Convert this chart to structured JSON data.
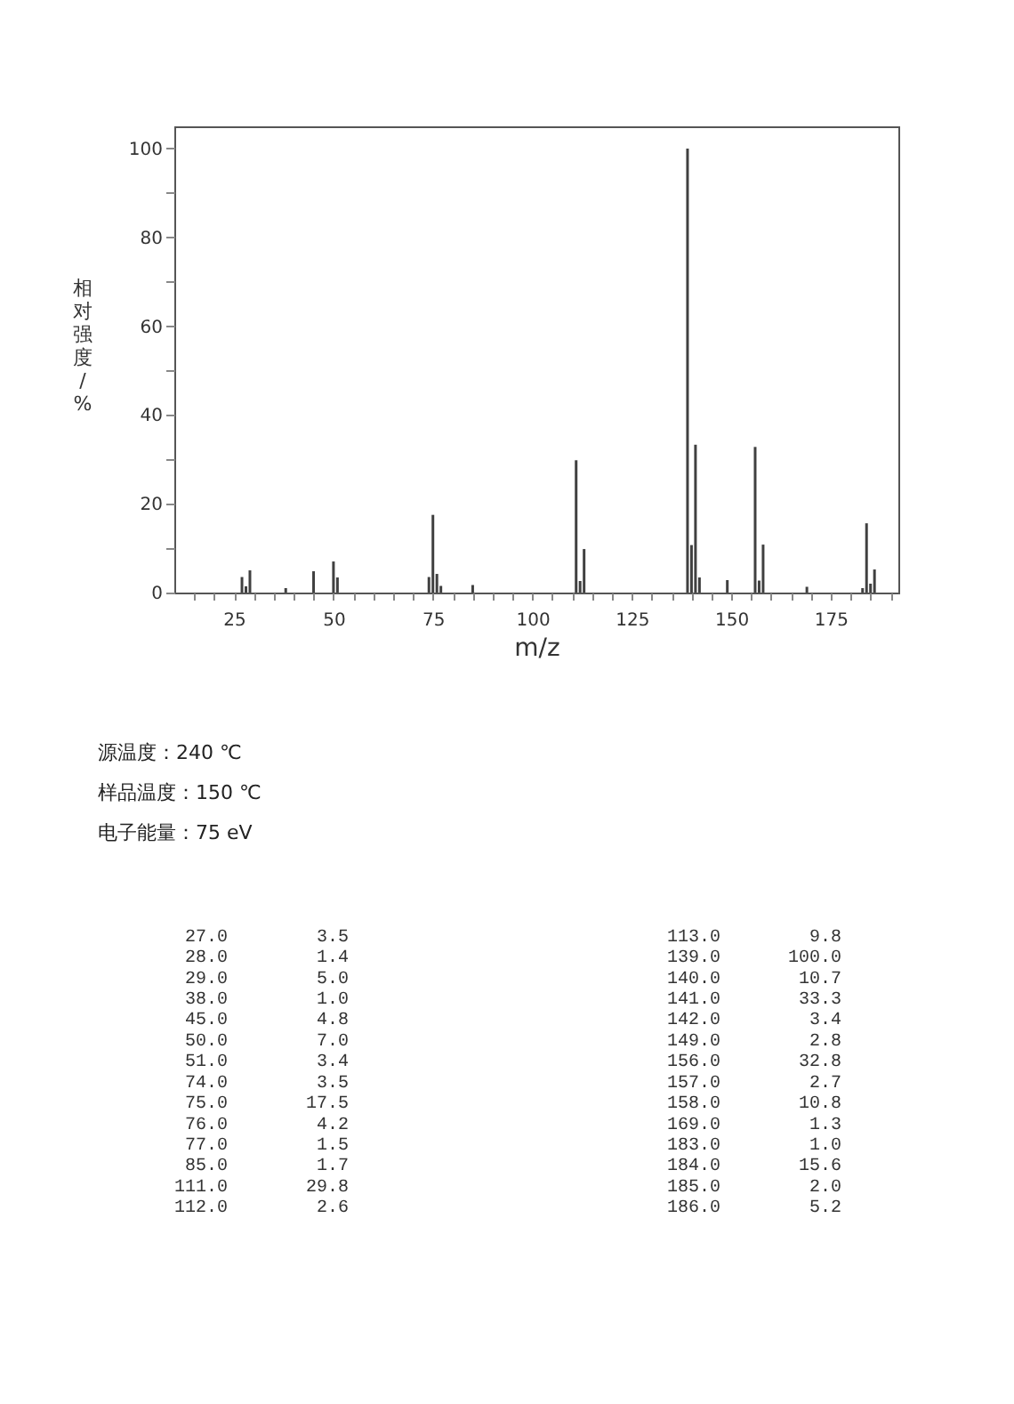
{
  "chart_data": [
    {
      "type": "bar",
      "xlabel": "m/z",
      "ylabel": "相对强度/%",
      "x": [
        27,
        28,
        29,
        38,
        45,
        50,
        51,
        74,
        75,
        76,
        77,
        85,
        111,
        112,
        113,
        139,
        140,
        141,
        142,
        149,
        156,
        157,
        158,
        169,
        183,
        184,
        185,
        186
      ],
      "values": [
        3.5,
        1.4,
        5.0,
        1.0,
        4.8,
        7.0,
        3.4,
        3.5,
        17.5,
        4.2,
        1.5,
        1.7,
        29.8,
        2.6,
        9.8,
        100.0,
        10.7,
        33.3,
        3.4,
        2.8,
        32.8,
        2.7,
        10.8,
        1.3,
        1.0,
        15.6,
        2.0,
        5.2
      ],
      "color": "#404040",
      "xlim": [
        10,
        192
      ],
      "ylim": [
        0,
        105
      ],
      "xticks": [
        {
          "value": 15,
          "label": null
        },
        {
          "value": 20,
          "label": null
        },
        25,
        {
          "value": 30,
          "label": null
        },
        {
          "value": 35,
          "label": null
        },
        {
          "value": 40,
          "label": null
        },
        {
          "value": 45,
          "label": null
        },
        50,
        {
          "value": 55,
          "label": null
        },
        {
          "value": 60,
          "label": null
        },
        {
          "value": 65,
          "label": null
        },
        {
          "value": 70,
          "label": null
        },
        75,
        {
          "value": 80,
          "label": null
        },
        {
          "value": 85,
          "label": null
        },
        {
          "value": 90,
          "label": null
        },
        {
          "value": 95,
          "label": null
        },
        100,
        {
          "value": 105,
          "label": null
        },
        {
          "value": 110,
          "label": null
        },
        {
          "value": 115,
          "label": null
        },
        {
          "value": 120,
          "label": null
        },
        125,
        {
          "value": 130,
          "label": null
        },
        {
          "value": 135,
          "label": null
        },
        {
          "value": 140,
          "label": null
        },
        {
          "value": 145,
          "label": null
        },
        150,
        {
          "value": 155,
          "label": null
        },
        {
          "value": 160,
          "label": null
        },
        {
          "value": 165,
          "label": null
        },
        {
          "value": 170,
          "label": null
        },
        175,
        {
          "value": 180,
          "label": null
        },
        {
          "value": 185,
          "label": null
        },
        {
          "value": 190,
          "label": null
        }
      ],
      "yticks": [
        0,
        {
          "value": 10,
          "label": null
        },
        20,
        {
          "value": 30,
          "label": null
        },
        40,
        {
          "value": 50,
          "label": null
        },
        60,
        {
          "value": 70,
          "label": null
        },
        80,
        {
          "value": 90,
          "label": null
        },
        100
      ],
      "annotations": [
        "源温度：240 ℃",
        "样品温度：150 ℃",
        "电子能量：75 eV"
      ]
    },
    {
      "type": "other",
      "categories": [
        "27.0",
        "28.0",
        "29.0",
        "38.0",
        "45.0",
        "50.0",
        "51.0",
        "74.0",
        "75.0",
        "76.0",
        "77.0",
        "85.0",
        "111.0",
        "112.0",
        "113.0",
        "139.0",
        "140.0",
        "141.0",
        "142.0",
        "149.0",
        "156.0",
        "157.0",
        "158.0",
        "169.0",
        "183.0",
        "184.0",
        "185.0",
        "186.0"
      ],
      "value_labels": [
        "3.5",
        "1.4",
        "5.0",
        "1.0",
        "4.8",
        "7.0",
        "3.4",
        "3.5",
        "17.5",
        "4.2",
        "1.5",
        "1.7",
        "29.8",
        "2.6",
        "9.8",
        "100.0",
        "10.7",
        "33.3",
        "3.4",
        "2.8",
        "32.8",
        "2.7",
        "10.8",
        "1.3",
        "1.0",
        "15.6",
        "2.0",
        "5.2"
      ]
    }
  ]
}
